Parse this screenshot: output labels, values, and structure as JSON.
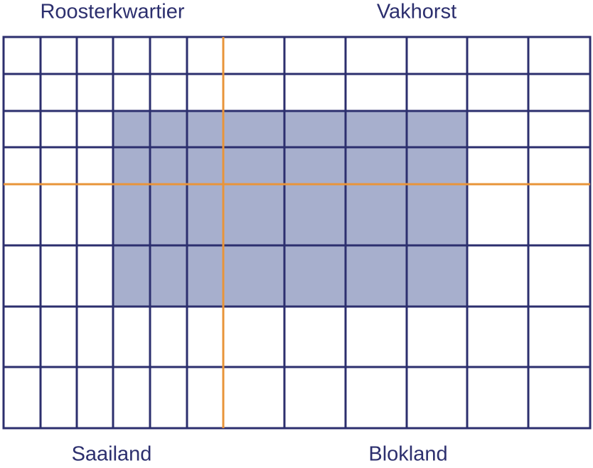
{
  "labels": {
    "top_left": "Roosterkwartier",
    "top_right": "Vakhorst",
    "bottom_left": "Saailand",
    "bottom_right": "Blokland"
  }
}
